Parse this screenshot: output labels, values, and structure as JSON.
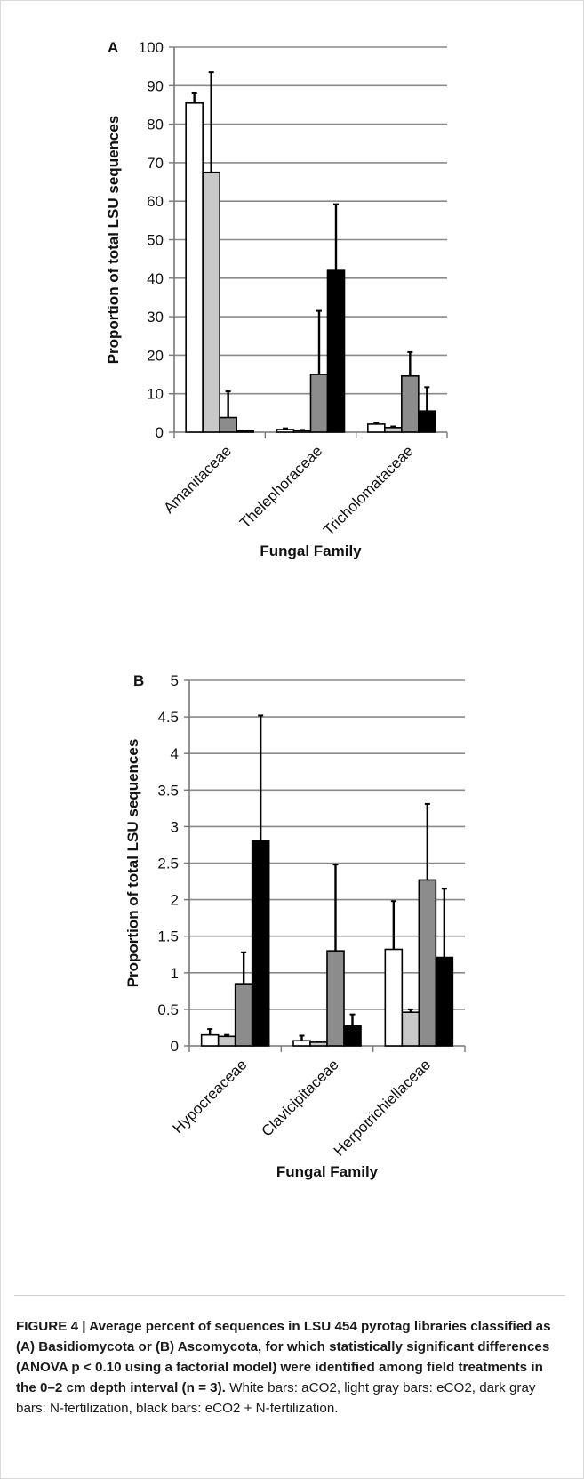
{
  "charts": [
    {
      "panel": "A",
      "ylabel": "Proportion of total LSU sequences",
      "xlabel": "Fungal Family"
    },
    {
      "panel": "B",
      "ylabel": "Proportion of total LSU sequences",
      "xlabel": "Fungal Family"
    }
  ],
  "chart_data": [
    {
      "type": "bar",
      "title": "",
      "xlabel": "Fungal Family",
      "ylabel": "Proportion of total LSU sequences",
      "ylim": [
        0,
        100
      ],
      "yticks": [
        0,
        10,
        20,
        30,
        40,
        50,
        60,
        70,
        80,
        90,
        100
      ],
      "grid": true,
      "categories": [
        "Amanitaceae",
        "Thelephoraceae",
        "Tricholomataceae"
      ],
      "series": [
        {
          "color": "#ffffff",
          "values": [
            85.5,
            0.7,
            2.1
          ],
          "errors": [
            2.5,
            0.3,
            0.4
          ]
        },
        {
          "color": "#c8c8c8",
          "values": [
            67.5,
            0.4,
            1.2
          ],
          "errors": [
            26.0,
            0.2,
            0.3
          ]
        },
        {
          "color": "#8c8c8c",
          "values": [
            3.8,
            15.0,
            14.6
          ],
          "errors": [
            6.8,
            16.5,
            6.2
          ]
        },
        {
          "color": "#000000",
          "values": [
            0.3,
            42.0,
            5.5
          ],
          "errors": [
            0.1,
            17.2,
            6.2
          ]
        }
      ]
    },
    {
      "type": "bar",
      "title": "",
      "xlabel": "Fungal Family",
      "ylabel": "Proportion of total LSU sequences",
      "ylim": [
        0,
        5
      ],
      "yticks": [
        0,
        0.5,
        1,
        1.5,
        2,
        2.5,
        3,
        3.5,
        4,
        4.5,
        5
      ],
      "grid": true,
      "categories": [
        "Hypocreaceae",
        "Clavicipitaceae",
        "Herpotrichiellaceae"
      ],
      "series": [
        {
          "color": "#ffffff",
          "values": [
            0.15,
            0.07,
            1.32
          ],
          "errors": [
            0.08,
            0.07,
            0.66
          ]
        },
        {
          "color": "#c8c8c8",
          "values": [
            0.13,
            0.05,
            0.46
          ],
          "errors": [
            0.02,
            0.01,
            0.04
          ]
        },
        {
          "color": "#8c8c8c",
          "values": [
            0.85,
            1.3,
            2.27
          ],
          "errors": [
            0.43,
            1.18,
            1.04
          ]
        },
        {
          "color": "#000000",
          "values": [
            2.81,
            0.27,
            1.21
          ],
          "errors": [
            1.71,
            0.16,
            0.94
          ]
        }
      ]
    }
  ],
  "caption": {
    "lead": "FIGURE 4 | Average percent of sequences in LSU 454 pyrotag libraries classified as (A) Basidiomycota or (B) Ascomycota, for which statistically significant differences (ANOVA p < 0.10 using a factorial model) were identified among field treatments in the 0–2 cm depth interval (n = 3).",
    "body": " White bars: aCO2, light gray bars: eCO2, dark gray bars: N-fertilization, black bars: eCO2 + N-fertilization."
  }
}
